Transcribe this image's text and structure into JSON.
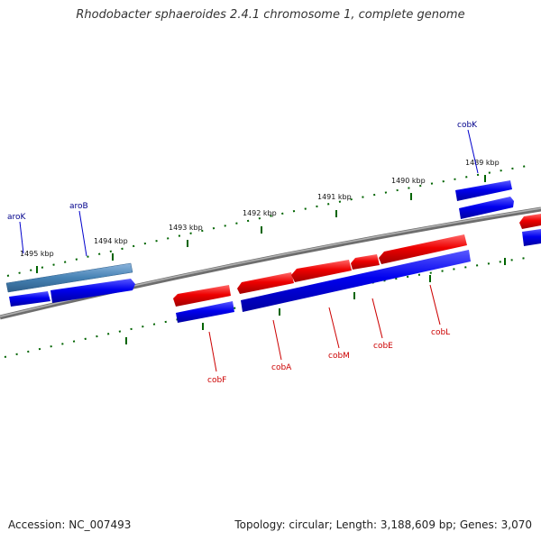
{
  "title": "Rhodobacter sphaeroides 2.4.1 chromosome 1, complete genome",
  "accession": "Accession: NC_007493",
  "summary": "Topology: circular; Length: 3,188,609 bp; Genes: 3,070",
  "scale_labels": [
    "1495 kbp",
    "1494 kbp",
    "1493 kbp",
    "1492 kbp",
    "1491 kbp",
    "1490 kbp",
    "1489 kbp"
  ],
  "gene_labels": {
    "aroK": "aroK",
    "aroB": "aroB",
    "cobK": "cobK",
    "cobF": "cobF",
    "cobA": "cobA",
    "cobM": "cobM",
    "cobE": "cobE",
    "cobL": "cobL"
  },
  "colors": {
    "forward_label": "#00008b",
    "reverse_label": "#cc0000",
    "forward_gene": "#0000ee",
    "reverse_gene": "#ee0000",
    "selected_gene": "#4682b4",
    "ticks": "#006400",
    "backbone": "#808080"
  }
}
